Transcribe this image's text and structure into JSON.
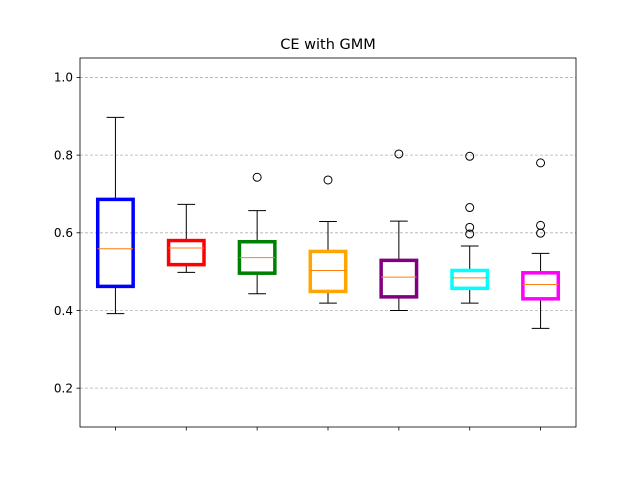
{
  "chart_data": {
    "type": "boxplot",
    "title": "CE with GMM",
    "xlabel": "",
    "ylabel": "",
    "ylim": [
      0.1,
      1.05
    ],
    "yticks": [
      "0.2",
      "0.4",
      "0.6",
      "0.8",
      "1.0"
    ],
    "ytick_values": [
      0.2,
      0.4,
      0.6,
      0.8,
      1.0
    ],
    "grid": "y-dashed",
    "median_color": "#ff7f0e",
    "boxes": [
      {
        "position": 1,
        "color": "#0000ff",
        "whisker_low": 0.392,
        "q1": 0.462,
        "median": 0.559,
        "q3": 0.686,
        "whisker_high": 0.897,
        "outliers": []
      },
      {
        "position": 2,
        "color": "#ff0000",
        "whisker_low": 0.498,
        "q1": 0.518,
        "median": 0.561,
        "q3": 0.58,
        "whisker_high": 0.673,
        "outliers": []
      },
      {
        "position": 3,
        "color": "#008000",
        "whisker_low": 0.443,
        "q1": 0.496,
        "median": 0.536,
        "q3": 0.577,
        "whisker_high": 0.657,
        "outliers": [
          0.743
        ]
      },
      {
        "position": 4,
        "color": "#ffa500",
        "whisker_low": 0.419,
        "q1": 0.449,
        "median": 0.503,
        "q3": 0.552,
        "whisker_high": 0.629,
        "outliers": [
          0.736
        ]
      },
      {
        "position": 5,
        "color": "#800080",
        "whisker_low": 0.4,
        "q1": 0.435,
        "median": 0.486,
        "q3": 0.529,
        "whisker_high": 0.63,
        "outliers": [
          0.803
        ]
      },
      {
        "position": 6,
        "color": "#00ffff",
        "whisker_low": 0.419,
        "q1": 0.457,
        "median": 0.484,
        "q3": 0.503,
        "whisker_high": 0.566,
        "outliers": [
          0.797,
          0.665,
          0.614,
          0.597
        ]
      },
      {
        "position": 7,
        "color": "#ff00ff",
        "whisker_low": 0.354,
        "q1": 0.43,
        "median": 0.467,
        "q3": 0.497,
        "whisker_high": 0.547,
        "outliers": [
          0.78,
          0.619,
          0.599
        ]
      }
    ]
  }
}
